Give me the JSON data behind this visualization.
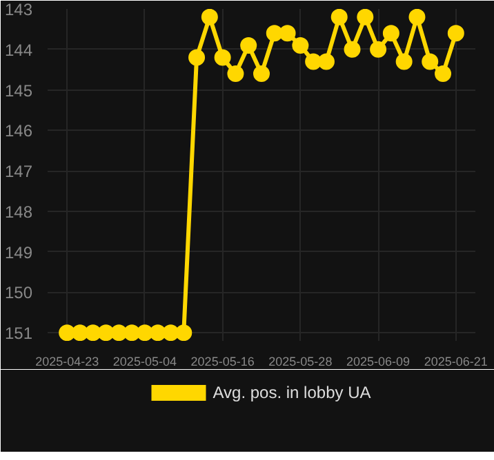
{
  "chart_data": {
    "type": "line",
    "x": [
      "2025-04-23",
      "2025-04-25",
      "2025-04-27",
      "2025-04-29",
      "2025-05-01",
      "2025-05-03",
      "2025-05-05",
      "2025-05-07",
      "2025-05-09",
      "2025-05-11",
      "2025-05-13",
      "2025-05-15",
      "2025-05-17",
      "2025-05-19",
      "2025-05-21",
      "2025-05-23",
      "2025-05-25",
      "2025-05-27",
      "2025-05-29",
      "2025-05-31",
      "2025-06-02",
      "2025-06-04",
      "2025-06-06",
      "2025-06-08",
      "2025-06-10",
      "2025-06-12",
      "2025-06-14",
      "2025-06-16",
      "2025-06-18",
      "2025-06-20",
      "2025-06-22"
    ],
    "series": [
      {
        "name": "Avg. pos. in lobby UA",
        "color": "#ffd700",
        "values": [
          151,
          151,
          151,
          151,
          151,
          151,
          151,
          151,
          151,
          151,
          144.2,
          143.2,
          144.2,
          144.6,
          143.9,
          144.6,
          143.6,
          143.6,
          143.9,
          144.3,
          144.3,
          143.2,
          144.0,
          143.2,
          144.0,
          143.6,
          144.3,
          143.2,
          144.3,
          144.6,
          143.6
        ]
      }
    ],
    "xlim": [
      "2025-04-20",
      "2025-06-25"
    ],
    "xticks": [
      {
        "value": "2025-04-23",
        "label": "2025-04-23"
      },
      {
        "value": "2025-05-05",
        "label": "2025-05-04"
      },
      {
        "value": "2025-05-17",
        "label": "2025-05-16"
      },
      {
        "value": "2025-05-29",
        "label": "2025-05-28"
      },
      {
        "value": "2025-06-10",
        "label": "2025-06-09"
      },
      {
        "value": "2025-06-22",
        "label": "2025-06-21"
      }
    ],
    "ylim": [
      151.2,
      143
    ],
    "yticks": [
      143,
      144,
      145,
      146,
      147,
      148,
      149,
      150,
      151
    ],
    "grid": true,
    "legend": "bottom",
    "marker": "circle",
    "line_style": "solid"
  }
}
